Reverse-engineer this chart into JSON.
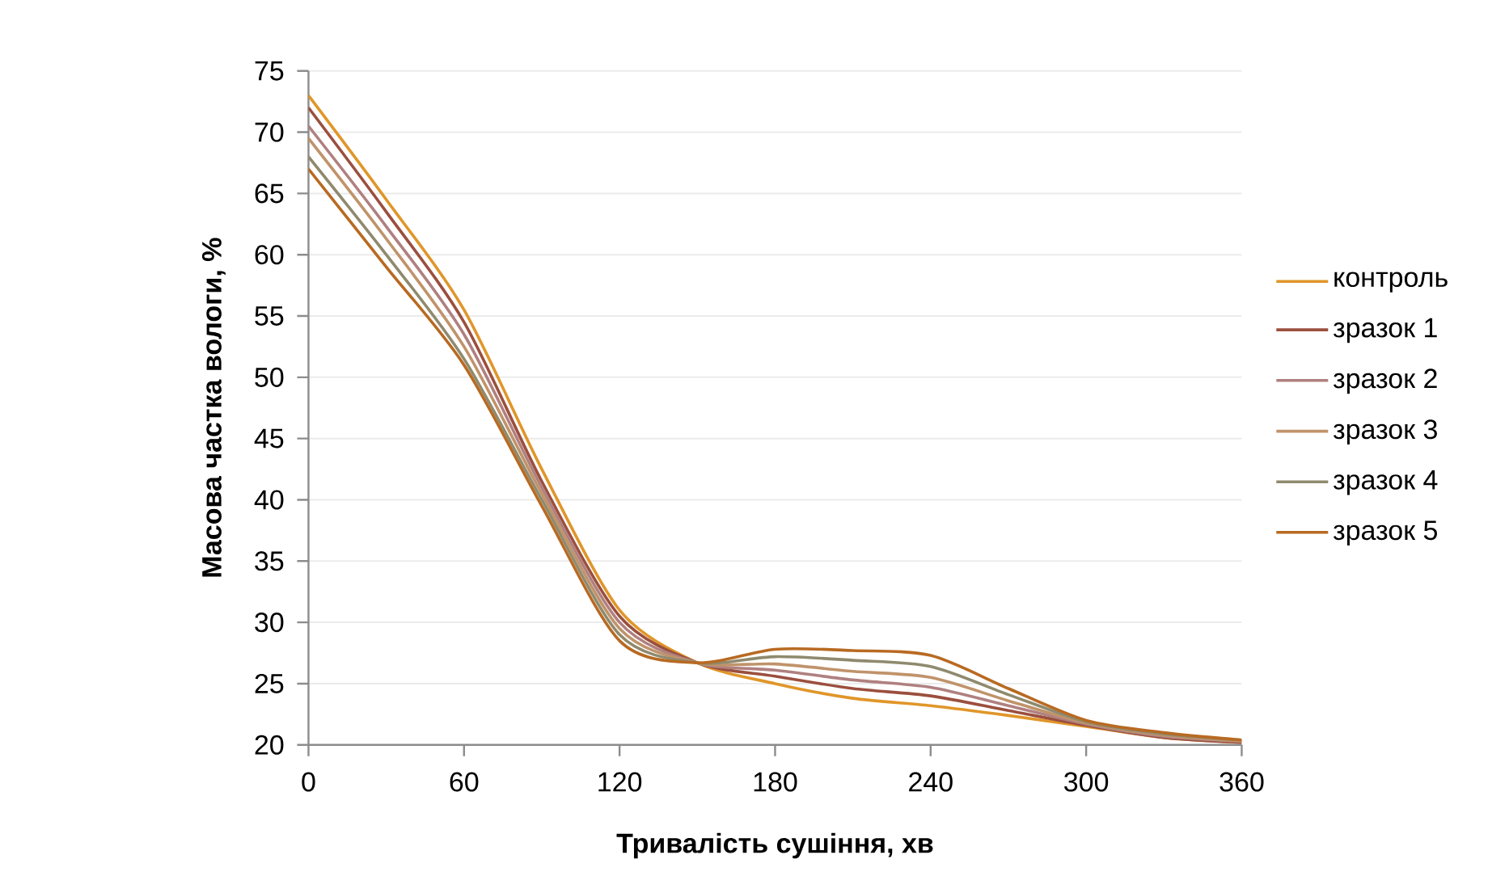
{
  "chart_data": {
    "type": "line",
    "xlabel": "Тривалість сушіння, хв",
    "ylabel": "Масова частка вологи, %",
    "x": [
      0,
      30,
      60,
      90,
      120,
      150,
      180,
      210,
      240,
      270,
      300,
      330,
      360
    ],
    "series": [
      {
        "name": "контроль",
        "color": "#e0962a",
        "values": [
          73,
          64.5,
          55.5,
          42.5,
          31,
          26.7,
          25,
          23.8,
          23.2,
          22.4,
          21.5,
          20.6,
          20.2
        ]
      },
      {
        "name": "зразок 1",
        "color": "#9b4f3e",
        "values": [
          72,
          63.5,
          54.5,
          41.5,
          30.5,
          26.7,
          25.6,
          24.6,
          24,
          22.8,
          21.6,
          20.6,
          20.2
        ]
      },
      {
        "name": "зразок 2",
        "color": "#b08080",
        "values": [
          70.5,
          62.3,
          53.5,
          41,
          30,
          26.7,
          26.1,
          25.3,
          24.7,
          23.2,
          21.7,
          20.7,
          20.3
        ]
      },
      {
        "name": "зразок 3",
        "color": "#c0936a",
        "values": [
          69.5,
          61.3,
          52.5,
          40.5,
          29.5,
          26.7,
          26.6,
          26,
          25.5,
          23.6,
          21.8,
          20.8,
          20.3
        ]
      },
      {
        "name": "зразок 4",
        "color": "#8f8a6e",
        "values": [
          68,
          60,
          51.5,
          40,
          29,
          26.7,
          27.2,
          26.9,
          26.4,
          24.1,
          21.9,
          20.9,
          20.4
        ]
      },
      {
        "name": "зразок 5",
        "color": "#b86a22",
        "values": [
          67,
          59,
          51,
          39.5,
          28.5,
          26.7,
          27.8,
          27.7,
          27.3,
          24.6,
          22,
          21,
          20.4
        ]
      }
    ],
    "xlim": [
      0,
      360
    ],
    "xticks": [
      0,
      60,
      120,
      180,
      240,
      300,
      360
    ],
    "ylim": [
      20,
      75
    ],
    "yticks": [
      20,
      25,
      30,
      35,
      40,
      45,
      50,
      55,
      60,
      65,
      70,
      75
    ],
    "grid": "y",
    "legend": "right",
    "marker": "none",
    "line_style": "solid"
  }
}
